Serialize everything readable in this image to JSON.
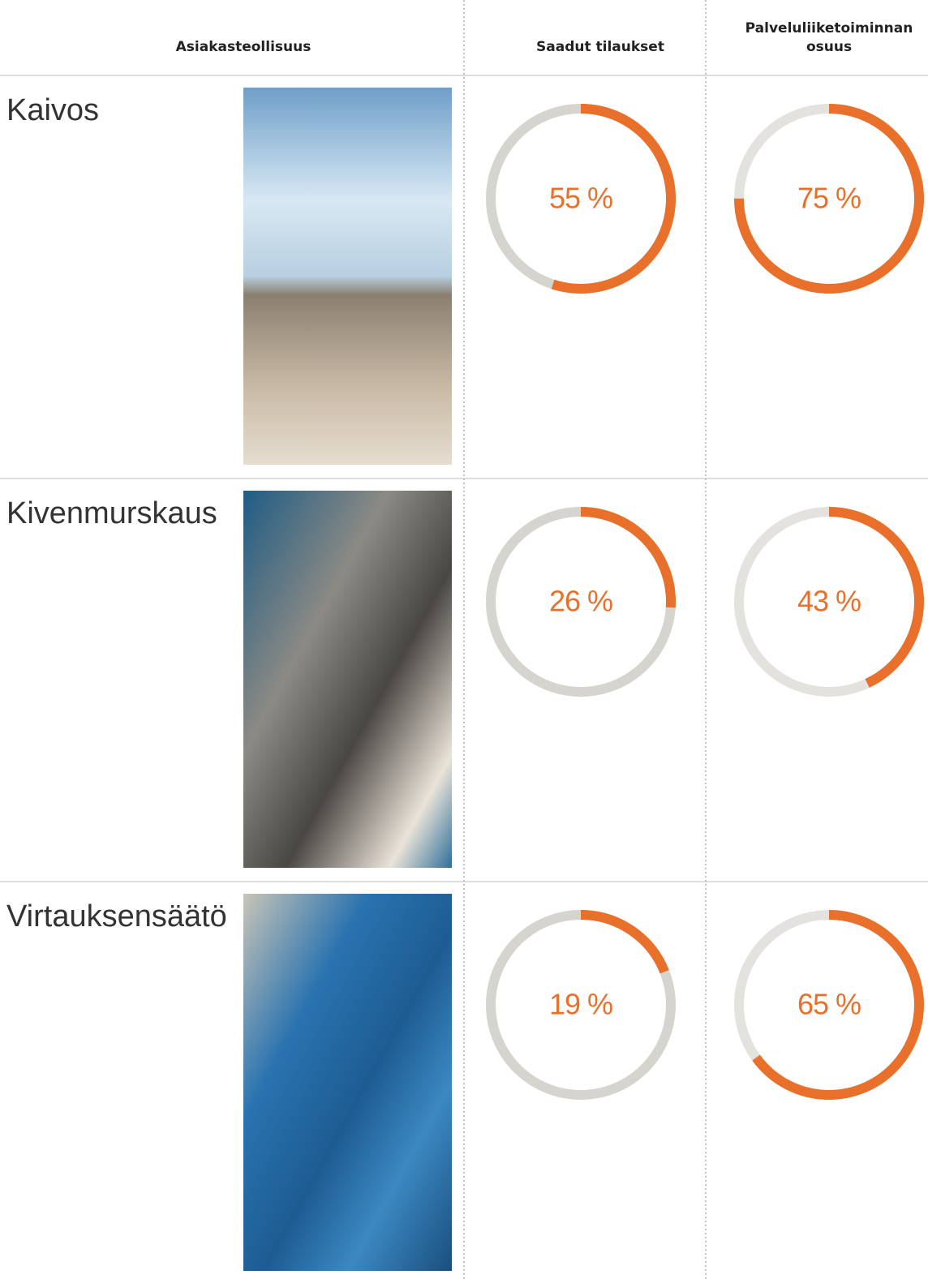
{
  "header": {
    "industry": "Asiakasteollisuus",
    "orders": "Saadut tilaukset",
    "service_share": "Palveluliiketoiminnan osuus"
  },
  "rows": [
    {
      "name": "Kaivos",
      "orders": {
        "value": 55,
        "label": "55 %"
      },
      "service_share": {
        "value": 75,
        "label": "75 %"
      }
    },
    {
      "name": "Kivenmurskaus",
      "orders": {
        "value": 26,
        "label": "26 %"
      },
      "service_share": {
        "value": 43,
        "label": "43 %"
      }
    },
    {
      "name": "Virtauksensäätö",
      "orders": {
        "value": 19,
        "label": "19 %"
      },
      "service_share": {
        "value": 65,
        "label": "65 %"
      }
    }
  ]
}
